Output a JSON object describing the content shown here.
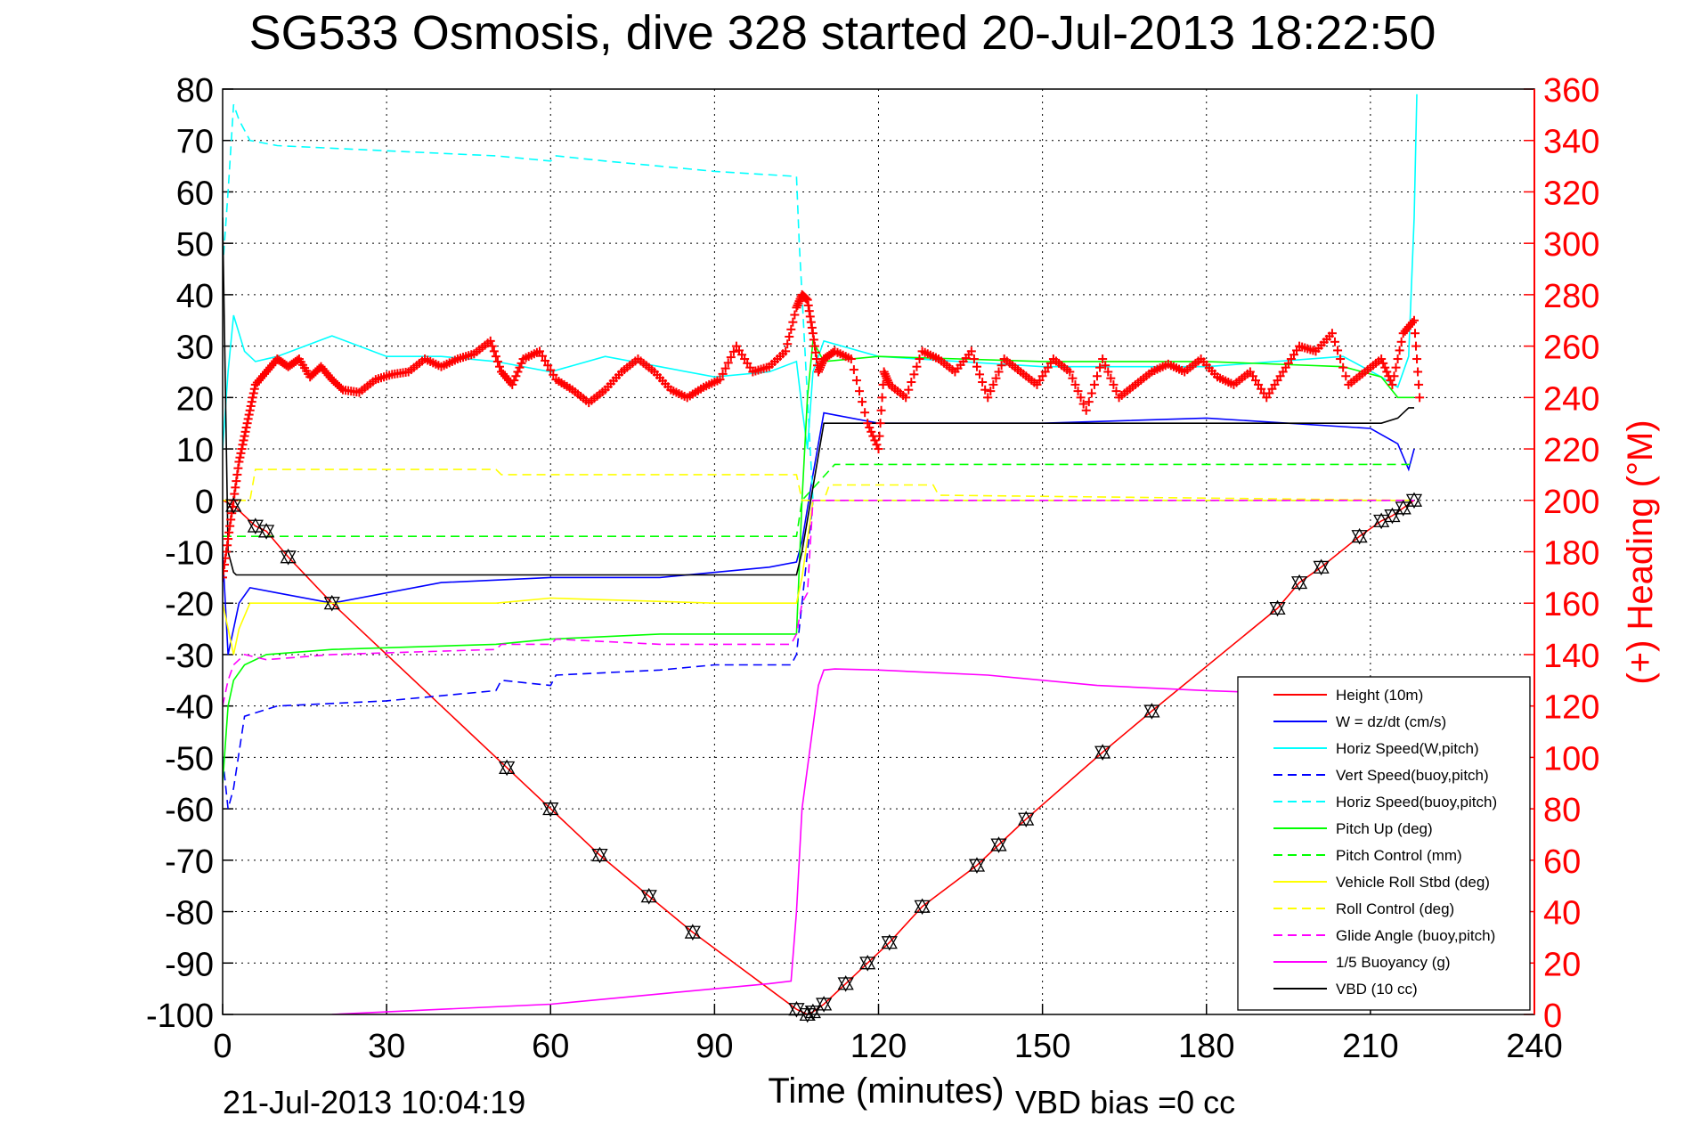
{
  "chart_data": {
    "type": "line",
    "title": "SG533 Osmosis, dive 328 started 20-Jul-2013 18:22:50",
    "xlabel": "Time (minutes)",
    "ylabel": "",
    "y2label": "(+) Heading (°M)",
    "xlim": [
      0,
      240
    ],
    "ylim": [
      -100,
      80
    ],
    "y2lim": [
      0,
      360
    ],
    "xticks": [
      "0",
      "30",
      "60",
      "90",
      "120",
      "150",
      "180",
      "210",
      "240"
    ],
    "yticks": [
      "80",
      "70",
      "60",
      "50",
      "40",
      "30",
      "20",
      "10",
      "0",
      "-10",
      "-20",
      "-30",
      "-40",
      "-50",
      "-60",
      "-70",
      "-80",
      "-90",
      "-100"
    ],
    "y2ticks": [
      "360",
      "340",
      "320",
      "300",
      "280",
      "260",
      "240",
      "220",
      "200",
      "180",
      "160",
      "140",
      "120",
      "100",
      "80",
      "60",
      "40",
      "20",
      "0"
    ],
    "grid": true,
    "legend_position": "lower-right",
    "footer_left": "21-Jul-2013 10:04:19",
    "footer_right": "VBD bias =0 cc",
    "series": [
      {
        "name": "Height (10m)",
        "color": "#ff0000",
        "style": "solid",
        "x": [
          0,
          2,
          6,
          8,
          12,
          20,
          52,
          60,
          69,
          78,
          86,
          105,
          107,
          108,
          110,
          114,
          118,
          122,
          128,
          138,
          142,
          147,
          161,
          170,
          193,
          197,
          201,
          208,
          212,
          214,
          216,
          218
        ],
        "y": [
          0,
          -1,
          -5,
          -6,
          -11,
          -20,
          -52,
          -60,
          -69,
          -77,
          -84,
          -99,
          -100,
          -99.5,
          -98,
          -94,
          -90,
          -86,
          -79,
          -71,
          -67,
          -62,
          -49,
          -41,
          -21,
          -16,
          -13,
          -7,
          -4,
          -3,
          -1.5,
          0
        ]
      },
      {
        "name": "W = dz/dt (cm/s)",
        "color": "#0000ff",
        "style": "solid",
        "x": [
          0,
          1,
          2,
          3,
          5,
          10,
          20,
          40,
          60,
          80,
          100,
          105,
          106,
          108,
          110,
          120,
          150,
          180,
          210,
          215,
          217,
          218
        ],
        "y": [
          -10,
          -30,
          -25,
          -20,
          -17,
          -18,
          -20,
          -16,
          -15,
          -15,
          -13,
          -12,
          -8,
          5,
          17,
          15,
          15,
          16,
          14,
          11,
          6,
          10
        ]
      },
      {
        "name": "Horiz Speed(W,pitch)",
        "color": "#00ffff",
        "style": "solid",
        "x": [
          0,
          1,
          2,
          4,
          6,
          10,
          20,
          30,
          40,
          50,
          60,
          70,
          80,
          90,
          100,
          105,
          106,
          107,
          108,
          110,
          120,
          150,
          180,
          205,
          212,
          215,
          217,
          218,
          218.5
        ],
        "y": [
          10,
          25,
          36,
          29,
          27,
          28,
          32,
          28,
          28,
          27,
          25,
          28,
          26,
          24,
          25,
          27,
          18,
          10,
          25,
          31,
          28,
          26,
          26,
          28,
          24,
          22,
          28,
          55,
          79
        ]
      },
      {
        "name": "Vert Speed(buoy,pitch)",
        "color": "#0000ff",
        "style": "dashed",
        "x": [
          0,
          1,
          2,
          4,
          10,
          30,
          50,
          51,
          60,
          61,
          80,
          90,
          104,
          105,
          108,
          218
        ],
        "y": [
          -50,
          -60,
          -56,
          -42,
          -40,
          -39,
          -37,
          -35,
          -36,
          -34,
          -33,
          -32,
          -32,
          -30,
          0,
          0
        ]
      },
      {
        "name": "Horiz Speed(buoy,pitch)",
        "color": "#00ffff",
        "style": "dashed",
        "x": [
          0,
          1,
          2,
          3,
          5,
          10,
          30,
          50,
          60,
          61,
          70,
          80,
          90,
          105,
          105.5,
          106,
          107,
          108,
          218
        ],
        "y": [
          45,
          60,
          77,
          74,
          70,
          69,
          68,
          67,
          66,
          67,
          66,
          65,
          64,
          63,
          50,
          40,
          20,
          0,
          0
        ]
      },
      {
        "name": "Pitch Up (deg)",
        "color": "#00ff00",
        "style": "solid",
        "x": [
          0,
          1,
          2,
          4,
          8,
          20,
          50,
          60,
          80,
          100,
          105,
          106,
          107,
          108,
          110,
          120,
          150,
          180,
          205,
          212,
          215,
          218
        ],
        "y": [
          -55,
          -40,
          -35,
          -32,
          -30,
          -29,
          -28,
          -27,
          -26,
          -26,
          -26,
          0,
          20,
          31,
          27,
          28,
          27,
          27,
          26,
          24,
          20,
          20
        ]
      },
      {
        "name": "Pitch Control (mm)",
        "color": "#00ff00",
        "style": "dashed",
        "x": [
          0,
          2,
          105,
          106,
          112,
          218
        ],
        "y": [
          -7,
          -7,
          -7,
          0,
          7,
          7
        ]
      },
      {
        "name": "Vehicle Roll Stbd (deg)",
        "color": "#ffff00",
        "style": "solid",
        "x": [
          0,
          2,
          3,
          5,
          10,
          50,
          60,
          90,
          100,
          105,
          106,
          108,
          110,
          120,
          150,
          180,
          195,
          200,
          212,
          215,
          218
        ],
        "y": [
          -20,
          -30,
          -25,
          -20,
          -20,
          -20,
          -19,
          -20,
          -20,
          -20,
          -15,
          0,
          0,
          0,
          0,
          0,
          0,
          0,
          0,
          0,
          0
        ]
      },
      {
        "name": "Roll Control (deg)",
        "color": "#ffff00",
        "style": "dashed",
        "x": [
          0,
          2,
          5,
          6,
          50,
          51,
          60,
          90,
          105,
          106,
          110,
          111,
          130,
          131,
          218
        ],
        "y": [
          0,
          0,
          0,
          6,
          6,
          5,
          5,
          5,
          5,
          0,
          0,
          3,
          3,
          1,
          0
        ]
      },
      {
        "name": "Glide Angle (buoy,pitch)",
        "color": "#ff00ff",
        "style": "dashed",
        "x": [
          0,
          1,
          2,
          4,
          8,
          20,
          50,
          51,
          60,
          61,
          80,
          90,
          104,
          105,
          106,
          107,
          108,
          218
        ],
        "y": [
          -40,
          -35,
          -32,
          -30,
          -31,
          -30,
          -29,
          -28,
          -28,
          -27,
          -28,
          -28,
          -28,
          -26,
          -20,
          -18,
          0,
          0
        ]
      },
      {
        "name": "1/5 Buoyancy (g)",
        "color": "#ff00ff",
        "style": "solid",
        "x": [
          20,
          40,
          60,
          80,
          100,
          104,
          105,
          106,
          109,
          110,
          112,
          120,
          140,
          160,
          180,
          193,
          200
        ],
        "y": [
          -100,
          -99,
          -98,
          -96,
          -94,
          -93.5,
          -80,
          -60,
          -36,
          -33,
          -32.8,
          -33,
          -34,
          -36,
          -37,
          -37.5,
          -38
        ]
      },
      {
        "name": "VBD (10 cc)",
        "color": "#000000",
        "style": "solid",
        "x": [
          0,
          1,
          2,
          2.5,
          105,
          106,
          110,
          212,
          215,
          217,
          218
        ],
        "y": [
          55,
          -10,
          -14,
          -14.5,
          -14.5,
          -10,
          15,
          15,
          16,
          18,
          18
        ]
      }
    ],
    "heading_series": {
      "name": "(+) Heading (°M)",
      "color": "#ff0000",
      "axis": "right",
      "x": [
        0,
        1,
        2,
        3,
        4,
        5,
        6,
        8,
        10,
        12,
        14,
        16,
        18,
        20,
        22,
        25,
        28,
        31,
        34,
        37,
        40,
        43,
        46,
        49,
        51,
        53,
        55,
        58,
        61,
        64,
        67,
        70,
        73,
        76,
        79,
        82,
        85,
        88,
        91,
        94,
        97,
        100,
        103,
        105,
        106,
        107,
        108,
        109,
        110,
        112,
        115,
        118,
        120,
        121,
        122,
        125,
        128,
        131,
        134,
        137,
        140,
        143,
        146,
        149,
        152,
        155,
        158,
        161,
        164,
        167,
        170,
        173,
        176,
        179,
        182,
        185,
        188,
        191,
        194,
        197,
        200,
        203,
        206,
        209,
        212,
        214,
        216,
        218,
        219
      ],
      "y": [
        170,
        185,
        200,
        215,
        225,
        235,
        245,
        250,
        255,
        252,
        255,
        248,
        252,
        247,
        243,
        242,
        247,
        249,
        250,
        255,
        252,
        255,
        257,
        262,
        250,
        245,
        255,
        258,
        247,
        243,
        238,
        243,
        250,
        255,
        250,
        243,
        240,
        244,
        247,
        260,
        250,
        252,
        258,
        275,
        280,
        278,
        265,
        250,
        255,
        258,
        255,
        230,
        220,
        250,
        245,
        240,
        258,
        255,
        250,
        258,
        240,
        255,
        250,
        245,
        255,
        250,
        235,
        255,
        240,
        245,
        250,
        253,
        250,
        255,
        248,
        245,
        250,
        240,
        250,
        260,
        258,
        265,
        245,
        250,
        255,
        245,
        265,
        270,
        240
      ]
    },
    "markers": {
      "x": [
        2,
        6,
        8,
        12,
        20,
        52,
        60,
        69,
        78,
        86,
        105,
        107,
        108,
        110,
        114,
        118,
        122,
        128,
        138,
        142,
        147,
        161,
        170,
        193,
        197,
        201,
        208,
        212,
        214,
        216,
        218
      ],
      "y": [
        -1,
        -5,
        -6,
        -11,
        -20,
        -52,
        -60,
        -69,
        -77,
        -84,
        -99,
        -100,
        -99.5,
        -98,
        -94,
        -90,
        -86,
        -79,
        -71,
        -67,
        -62,
        -49,
        -41,
        -21,
        -16,
        -13,
        -7,
        -4,
        -3,
        -1.5,
        0
      ]
    }
  }
}
